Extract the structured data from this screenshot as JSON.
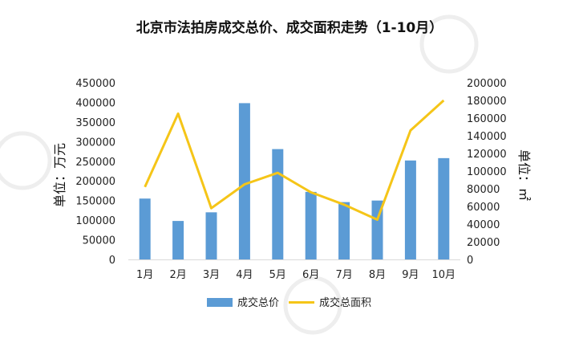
{
  "chart_data": {
    "type": "bar",
    "title": "北京市法拍房成交总价、成交面积走势（1-10月）",
    "categories": [
      "1月",
      "2月",
      "3月",
      "4月",
      "5月",
      "6月",
      "7月",
      "8月",
      "9月",
      "10月"
    ],
    "series": [
      {
        "name": "成交总价",
        "type": "bar",
        "axis": "left",
        "color": "#5b9bd5",
        "values": [
          155000,
          98000,
          120000,
          398000,
          281000,
          172000,
          146000,
          150000,
          252000,
          258000
        ]
      },
      {
        "name": "成交总面积",
        "type": "line",
        "axis": "right",
        "color": "#f5c518",
        "values": [
          82000,
          165000,
          58000,
          85000,
          98000,
          76000,
          62000,
          45000,
          146000,
          180000
        ]
      }
    ],
    "ylabel_left": "单位：万元",
    "ylabel_right": "单位：㎡",
    "ylim_left": [
      0,
      450000
    ],
    "yticks_left": [
      "0",
      "50000",
      "100000",
      "150000",
      "200000",
      "250000",
      "300000",
      "350000",
      "400000",
      "450000"
    ],
    "ylim_right": [
      0,
      200000
    ],
    "yticks_right": [
      "0",
      "20000",
      "40000",
      "60000",
      "80000",
      "100000",
      "120000",
      "140000",
      "160000",
      "180000",
      "200000"
    ],
    "grid": false,
    "legend": "bottom"
  }
}
